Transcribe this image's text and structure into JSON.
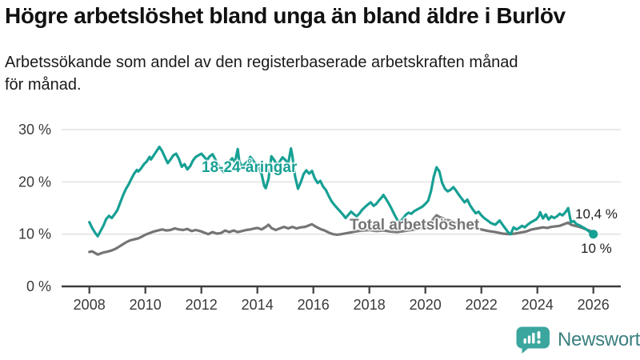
{
  "header": {
    "title": "Högre arbetslöshet bland unga än bland äldre i Burlöv",
    "subtitle_line1": "Arbetssökande som andel av den registerbaserade arbetskraften månad",
    "subtitle_line2": "för månad."
  },
  "chart_data": {
    "type": "line",
    "title": "Högre arbetslöshet bland unga än bland äldre i Burlöv",
    "xlabel": "",
    "ylabel": "",
    "x_axis": {
      "ticks": [
        2008,
        2010,
        2012,
        2014,
        2016,
        2018,
        2020,
        2022,
        2024,
        2026
      ],
      "range": [
        2007,
        2027
      ]
    },
    "y_axis": {
      "tick_values": [
        0,
        10,
        20,
        30
      ],
      "unit": "%",
      "range": [
        0,
        32
      ],
      "grid": true
    },
    "legend_position": "inline-labels",
    "series": [
      {
        "name": "18-24-åringar",
        "color": "#17a094",
        "end_label": "10 %",
        "end_value": 10.0,
        "end_dot": true,
        "points": [
          [
            2008.0,
            12.3
          ],
          [
            2008.1,
            11.2
          ],
          [
            2008.2,
            10.3
          ],
          [
            2008.3,
            9.6
          ],
          [
            2008.4,
            10.6
          ],
          [
            2008.5,
            11.6
          ],
          [
            2008.6,
            12.9
          ],
          [
            2008.7,
            13.5
          ],
          [
            2008.8,
            13.1
          ],
          [
            2008.9,
            13.8
          ],
          [
            2009.0,
            14.6
          ],
          [
            2009.1,
            16.0
          ],
          [
            2009.2,
            17.4
          ],
          [
            2009.3,
            18.6
          ],
          [
            2009.4,
            19.5
          ],
          [
            2009.5,
            20.6
          ],
          [
            2009.6,
            21.6
          ],
          [
            2009.7,
            22.3
          ],
          [
            2009.75,
            22.0
          ],
          [
            2009.85,
            22.6
          ],
          [
            2009.95,
            23.4
          ],
          [
            2010.05,
            23.9
          ],
          [
            2010.15,
            24.8
          ],
          [
            2010.2,
            24.3
          ],
          [
            2010.3,
            25.1
          ],
          [
            2010.4,
            25.9
          ],
          [
            2010.5,
            26.7
          ],
          [
            2010.6,
            25.9
          ],
          [
            2010.7,
            24.7
          ],
          [
            2010.8,
            23.6
          ],
          [
            2010.9,
            24.3
          ],
          [
            2011.0,
            25.1
          ],
          [
            2011.1,
            25.4
          ],
          [
            2011.2,
            24.4
          ],
          [
            2011.3,
            22.9
          ],
          [
            2011.4,
            23.4
          ],
          [
            2011.5,
            22.4
          ],
          [
            2011.6,
            23.0
          ],
          [
            2011.7,
            24.1
          ],
          [
            2011.8,
            24.8
          ],
          [
            2011.9,
            25.1
          ],
          [
            2012.0,
            25.4
          ],
          [
            2012.1,
            24.8
          ],
          [
            2012.2,
            24.2
          ],
          [
            2012.3,
            24.9
          ],
          [
            2012.4,
            25.3
          ],
          [
            2012.5,
            24.3
          ],
          [
            2012.6,
            23.2
          ],
          [
            2012.7,
            22.5
          ],
          [
            2012.8,
            21.9
          ],
          [
            2012.9,
            22.8
          ],
          [
            2013.0,
            23.9
          ],
          [
            2013.1,
            24.5
          ],
          [
            2013.2,
            23.8
          ],
          [
            2013.3,
            26.3
          ],
          [
            2013.35,
            24.1
          ],
          [
            2013.45,
            22.9
          ],
          [
            2013.55,
            23.4
          ],
          [
            2013.65,
            24.0
          ],
          [
            2013.75,
            24.8
          ],
          [
            2013.85,
            24.1
          ],
          [
            2013.95,
            23.4
          ],
          [
            2014.05,
            22.8
          ],
          [
            2014.15,
            21.5
          ],
          [
            2014.25,
            19.2
          ],
          [
            2014.3,
            18.8
          ],
          [
            2014.4,
            20.6
          ],
          [
            2014.5,
            24.9
          ],
          [
            2014.6,
            24.2
          ],
          [
            2014.7,
            23.3
          ],
          [
            2014.8,
            23.9
          ],
          [
            2014.9,
            24.7
          ],
          [
            2015.0,
            24.2
          ],
          [
            2015.1,
            23.5
          ],
          [
            2015.2,
            26.4
          ],
          [
            2015.25,
            25.0
          ],
          [
            2015.35,
            21.0
          ],
          [
            2015.45,
            18.7
          ],
          [
            2015.55,
            19.9
          ],
          [
            2015.65,
            21.5
          ],
          [
            2015.75,
            22.2
          ],
          [
            2015.85,
            21.6
          ],
          [
            2015.95,
            22.1
          ],
          [
            2016.05,
            20.7
          ],
          [
            2016.15,
            19.8
          ],
          [
            2016.25,
            20.2
          ],
          [
            2016.35,
            19.1
          ],
          [
            2016.45,
            18.4
          ],
          [
            2016.55,
            17.3
          ],
          [
            2016.65,
            16.3
          ],
          [
            2016.75,
            15.6
          ],
          [
            2016.85,
            15.0
          ],
          [
            2016.95,
            14.4
          ],
          [
            2017.05,
            13.8
          ],
          [
            2017.15,
            13.1
          ],
          [
            2017.25,
            13.7
          ],
          [
            2017.35,
            14.3
          ],
          [
            2017.45,
            13.8
          ],
          [
            2017.55,
            13.4
          ],
          [
            2017.65,
            14.0
          ],
          [
            2017.75,
            14.7
          ],
          [
            2017.85,
            15.2
          ],
          [
            2017.95,
            15.7
          ],
          [
            2018.05,
            16.1
          ],
          [
            2018.15,
            15.4
          ],
          [
            2018.25,
            15.8
          ],
          [
            2018.35,
            16.5
          ],
          [
            2018.45,
            17.1
          ],
          [
            2018.5,
            17.5
          ],
          [
            2018.6,
            16.7
          ],
          [
            2018.7,
            15.8
          ],
          [
            2018.8,
            14.8
          ],
          [
            2018.9,
            13.7
          ],
          [
            2019.0,
            12.7
          ],
          [
            2019.1,
            12.4
          ],
          [
            2019.2,
            13.0
          ],
          [
            2019.3,
            13.7
          ],
          [
            2019.4,
            14.1
          ],
          [
            2019.5,
            13.9
          ],
          [
            2019.6,
            14.4
          ],
          [
            2019.7,
            14.7
          ],
          [
            2019.8,
            15.0
          ],
          [
            2019.9,
            15.3
          ],
          [
            2020.0,
            15.8
          ],
          [
            2020.1,
            16.4
          ],
          [
            2020.2,
            18.2
          ],
          [
            2020.3,
            21.0
          ],
          [
            2020.4,
            22.8
          ],
          [
            2020.5,
            22.0
          ],
          [
            2020.6,
            19.8
          ],
          [
            2020.7,
            18.7
          ],
          [
            2020.8,
            18.2
          ],
          [
            2020.9,
            18.5
          ],
          [
            2021.0,
            19.0
          ],
          [
            2021.1,
            18.3
          ],
          [
            2021.2,
            17.5
          ],
          [
            2021.3,
            16.8
          ],
          [
            2021.4,
            16.1
          ],
          [
            2021.5,
            16.6
          ],
          [
            2021.6,
            15.5
          ],
          [
            2021.7,
            14.7
          ],
          [
            2021.8,
            14.0
          ],
          [
            2021.9,
            14.3
          ],
          [
            2022.0,
            13.6
          ],
          [
            2022.1,
            13.1
          ],
          [
            2022.2,
            12.7
          ],
          [
            2022.35,
            12.1
          ],
          [
            2022.5,
            11.8
          ],
          [
            2022.65,
            12.6
          ],
          [
            2022.8,
            11.5
          ],
          [
            2022.95,
            10.4
          ],
          [
            2023.05,
            10.0
          ],
          [
            2023.15,
            11.3
          ],
          [
            2023.25,
            10.9
          ],
          [
            2023.35,
            11.2
          ],
          [
            2023.45,
            11.6
          ],
          [
            2023.55,
            11.3
          ],
          [
            2023.65,
            11.8
          ],
          [
            2023.75,
            12.2
          ],
          [
            2023.85,
            12.5
          ],
          [
            2023.95,
            12.8
          ],
          [
            2024.05,
            13.4
          ],
          [
            2024.1,
            14.2
          ],
          [
            2024.2,
            13.0
          ],
          [
            2024.3,
            13.8
          ],
          [
            2024.4,
            12.8
          ],
          [
            2024.5,
            13.4
          ],
          [
            2024.6,
            13.1
          ],
          [
            2024.7,
            13.4
          ],
          [
            2024.8,
            13.9
          ],
          [
            2024.9,
            13.6
          ],
          [
            2025.0,
            14.2
          ],
          [
            2025.1,
            15.0
          ],
          [
            2025.2,
            12.3
          ],
          [
            2025.3,
            12.5
          ],
          [
            2025.4,
            11.9
          ],
          [
            2025.5,
            11.7
          ],
          [
            2025.6,
            11.4
          ],
          [
            2025.7,
            11.1
          ],
          [
            2025.8,
            10.7
          ],
          [
            2025.9,
            10.3
          ],
          [
            2026.0,
            10.0
          ]
        ]
      },
      {
        "name": "Total arbetslöshet",
        "color": "#757575",
        "end_label": "10,4 %",
        "end_value": 10.4,
        "end_dot": false,
        "points": [
          [
            2008.0,
            6.6
          ],
          [
            2008.1,
            6.7
          ],
          [
            2008.2,
            6.4
          ],
          [
            2008.3,
            6.1
          ],
          [
            2008.4,
            6.3
          ],
          [
            2008.5,
            6.5
          ],
          [
            2008.6,
            6.6
          ],
          [
            2008.75,
            6.8
          ],
          [
            2008.9,
            7.1
          ],
          [
            2009.0,
            7.4
          ],
          [
            2009.15,
            7.9
          ],
          [
            2009.3,
            8.4
          ],
          [
            2009.45,
            8.8
          ],
          [
            2009.6,
            9.0
          ],
          [
            2009.75,
            9.2
          ],
          [
            2009.9,
            9.6
          ],
          [
            2010.0,
            9.9
          ],
          [
            2010.15,
            10.2
          ],
          [
            2010.3,
            10.5
          ],
          [
            2010.45,
            10.7
          ],
          [
            2010.6,
            10.9
          ],
          [
            2010.75,
            10.7
          ],
          [
            2010.9,
            10.8
          ],
          [
            2011.05,
            11.1
          ],
          [
            2011.2,
            10.9
          ],
          [
            2011.35,
            10.8
          ],
          [
            2011.5,
            11.0
          ],
          [
            2011.65,
            10.6
          ],
          [
            2011.8,
            10.8
          ],
          [
            2011.95,
            10.6
          ],
          [
            2012.1,
            10.3
          ],
          [
            2012.25,
            10.0
          ],
          [
            2012.4,
            10.4
          ],
          [
            2012.55,
            10.1
          ],
          [
            2012.7,
            10.2
          ],
          [
            2012.85,
            10.7
          ],
          [
            2013.0,
            10.4
          ],
          [
            2013.15,
            10.7
          ],
          [
            2013.3,
            10.4
          ],
          [
            2013.45,
            10.6
          ],
          [
            2013.6,
            10.8
          ],
          [
            2013.75,
            10.9
          ],
          [
            2013.9,
            11.1
          ],
          [
            2014.0,
            11.2
          ],
          [
            2014.15,
            10.9
          ],
          [
            2014.3,
            11.4
          ],
          [
            2014.4,
            11.8
          ],
          [
            2014.5,
            11.2
          ],
          [
            2014.65,
            10.8
          ],
          [
            2014.8,
            11.1
          ],
          [
            2014.95,
            11.4
          ],
          [
            2015.1,
            11.1
          ],
          [
            2015.25,
            11.4
          ],
          [
            2015.4,
            11.1
          ],
          [
            2015.55,
            11.3
          ],
          [
            2015.7,
            11.4
          ],
          [
            2015.85,
            11.7
          ],
          [
            2015.95,
            11.9
          ],
          [
            2016.1,
            11.4
          ],
          [
            2016.25,
            11.0
          ],
          [
            2016.4,
            10.7
          ],
          [
            2016.55,
            10.3
          ],
          [
            2016.7,
            10.0
          ],
          [
            2016.85,
            9.9
          ],
          [
            2017.0,
            10.0
          ],
          [
            2017.2,
            10.2
          ],
          [
            2017.4,
            10.4
          ],
          [
            2017.6,
            10.6
          ],
          [
            2017.8,
            10.7
          ],
          [
            2018.0,
            10.8
          ],
          [
            2018.25,
            10.6
          ],
          [
            2018.5,
            10.7
          ],
          [
            2018.75,
            10.5
          ],
          [
            2019.0,
            10.4
          ],
          [
            2019.25,
            10.6
          ],
          [
            2019.5,
            10.8
          ],
          [
            2019.75,
            11.0
          ],
          [
            2020.0,
            11.3
          ],
          [
            2020.15,
            11.9
          ],
          [
            2020.3,
            13.0
          ],
          [
            2020.4,
            13.6
          ],
          [
            2020.5,
            13.3
          ],
          [
            2020.65,
            13.0
          ],
          [
            2020.8,
            12.7
          ],
          [
            2021.0,
            12.4
          ],
          [
            2021.25,
            12.0
          ],
          [
            2021.5,
            11.6
          ],
          [
            2021.75,
            11.2
          ],
          [
            2022.0,
            10.9
          ],
          [
            2022.25,
            10.6
          ],
          [
            2022.5,
            10.4
          ],
          [
            2022.75,
            10.1
          ],
          [
            2023.0,
            10.0
          ],
          [
            2023.2,
            10.1
          ],
          [
            2023.4,
            10.3
          ],
          [
            2023.6,
            10.5
          ],
          [
            2023.8,
            10.9
          ],
          [
            2024.0,
            11.1
          ],
          [
            2024.2,
            11.3
          ],
          [
            2024.35,
            11.2
          ],
          [
            2024.5,
            11.4
          ],
          [
            2024.65,
            11.5
          ],
          [
            2024.8,
            11.6
          ],
          [
            2025.0,
            12.0
          ],
          [
            2025.1,
            12.2
          ],
          [
            2025.2,
            11.8
          ],
          [
            2025.35,
            11.6
          ],
          [
            2025.5,
            11.4
          ],
          [
            2025.65,
            11.1
          ],
          [
            2025.8,
            10.8
          ],
          [
            2026.0,
            10.4
          ]
        ]
      }
    ],
    "colors": {
      "young": "#17a094",
      "total": "#757575",
      "grid": "#e3e3e3",
      "axis": "#3d3d3d",
      "tick_text": "#3a3a3a"
    }
  },
  "branding": {
    "name": "Newsworthy",
    "icon": "bar-chart-speech-bubble-icon",
    "icon_color": "#3aa69e",
    "text_color": "#3a7f7e"
  }
}
